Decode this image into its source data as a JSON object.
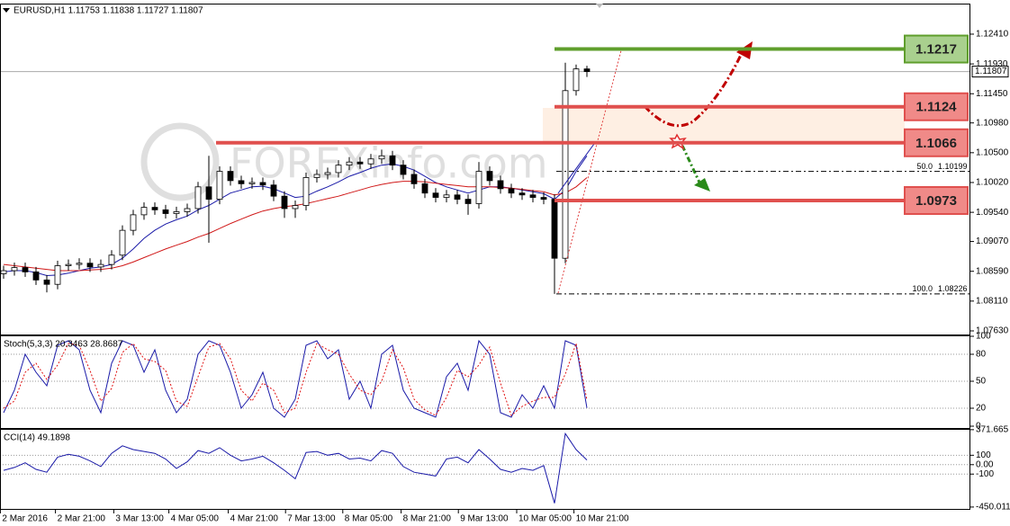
{
  "chart_data": [
    {
      "type": "candlestick",
      "title": "EURUSD,H1 1.11753 1.11838 1.11727 1.11807",
      "watermark": "FOREXinfo.com",
      "ylim": [
        1.07572,
        1.12902
      ],
      "yticks": [
        {
          "value": 1.1241,
          "label": "1.12410"
        },
        {
          "value": 1.1193,
          "label": "1.11930"
        },
        {
          "value": 1.1145,
          "label": "1.11450"
        },
        {
          "value": 1.1098,
          "label": "1.10980"
        },
        {
          "value": 1.105,
          "label": "1.10500"
        },
        {
          "value": 1.1002,
          "label": "1.10020"
        },
        {
          "value": 1.0954,
          "label": "1.09540"
        },
        {
          "value": 1.0907,
          "label": "1.09070"
        },
        {
          "value": 1.0859,
          "label": "1.08590"
        },
        {
          "value": 1.0811,
          "label": "1.08110"
        },
        {
          "value": 1.0763,
          "label": "1.07630"
        }
      ],
      "xlim": [
        -0.333,
        89.5
      ],
      "xticks": [
        {
          "value": -0.3,
          "label": "2 Mar 2016"
        },
        {
          "value": 4.8,
          "label": "2 Mar 21:00"
        },
        {
          "value": 10.2,
          "label": "3 Mar 13:00"
        },
        {
          "value": 15.3,
          "label": "4 Mar 05:00"
        },
        {
          "value": 20.8,
          "label": "4 Mar 21:00"
        },
        {
          "value": 26.1,
          "label": "7 Mar 13:00"
        },
        {
          "value": 31.4,
          "label": "8 Mar 05:00"
        },
        {
          "value": 36.8,
          "label": "8 Mar 21:00"
        },
        {
          "value": 42.1,
          "label": "9 Mar 13:00"
        },
        {
          "value": 47.5,
          "label": "10 Mar 05:00"
        },
        {
          "value": 52.8,
          "label": "10 Mar 21:00"
        }
      ],
      "open": [
        1.0855,
        1.086,
        1.0865,
        1.0858,
        1.0845,
        1.0838,
        1.0868,
        1.087,
        1.0872,
        1.0866,
        1.087,
        1.0885,
        1.0925,
        1.095,
        1.0962,
        1.0958,
        1.0952,
        1.0955,
        1.096,
        1.0995,
        1.0975,
        1.102,
        1.1005,
        1.1,
        1.1002,
        1.0998,
        1.098,
        1.096,
        1.0965,
        1.101,
        1.1015,
        1.1018,
        1.103,
        1.1035,
        1.1032,
        1.104,
        1.1045,
        1.103,
        1.1015,
        1.1,
        1.0985,
        1.0978,
        1.0982,
        1.0975,
        1.0968,
        1.102,
        1.1005,
        1.0992,
        1.0985,
        1.0982,
        1.0978,
        1.0975,
        1.088,
        1.115,
        1.1185
      ],
      "high": [
        1.0868,
        1.0873,
        1.0873,
        1.0866,
        1.0853,
        1.0876,
        1.0878,
        1.088,
        1.088,
        1.0878,
        1.0893,
        1.0933,
        1.0958,
        1.097,
        1.097,
        1.0966,
        1.0963,
        1.0968,
        1.1003,
        1.1045,
        1.1028,
        1.1028,
        1.1013,
        1.101,
        1.101,
        1.1006,
        1.0988,
        1.0973,
        1.1018,
        1.1023,
        1.1026,
        1.1038,
        1.1043,
        1.1043,
        1.1048,
        1.1055,
        1.1053,
        1.1038,
        1.1023,
        1.1008,
        1.0993,
        1.099,
        1.099,
        1.0983,
        1.1035,
        1.1028,
        1.1013,
        1.1,
        1.0993,
        1.099,
        1.0986,
        1.0983,
        1.1195,
        1.1192,
        1.119
      ],
      "low": [
        1.0847,
        1.0852,
        1.085,
        1.0837,
        1.0825,
        1.083,
        1.086,
        1.0862,
        1.0858,
        1.0858,
        1.0862,
        1.0877,
        1.0917,
        1.0942,
        1.095,
        1.0944,
        1.0944,
        1.0947,
        1.0952,
        1.0905,
        1.0967,
        1.0997,
        1.0992,
        1.0992,
        1.099,
        1.0972,
        1.0945,
        1.0945,
        1.0957,
        1.1002,
        1.1007,
        1.101,
        1.1022,
        1.1024,
        1.1024,
        1.1032,
        1.1022,
        1.1007,
        1.0992,
        1.0977,
        1.097,
        1.097,
        1.0967,
        1.095,
        1.096,
        1.0997,
        1.0984,
        1.0977,
        1.0974,
        1.097,
        1.0967,
        1.08226,
        1.0872,
        1.1142,
        1.1172
      ],
      "close": [
        1.086,
        1.0865,
        1.0858,
        1.0845,
        1.0838,
        1.0868,
        1.087,
        1.0872,
        1.0866,
        1.087,
        1.0885,
        1.0925,
        1.095,
        1.0962,
        1.0958,
        1.0952,
        1.0955,
        1.096,
        1.0995,
        1.0975,
        1.102,
        1.1005,
        1.1,
        1.1002,
        1.0998,
        1.098,
        1.096,
        1.0965,
        1.101,
        1.1015,
        1.1018,
        1.103,
        1.1035,
        1.1032,
        1.104,
        1.1045,
        1.103,
        1.1015,
        1.1,
        1.0985,
        1.0978,
        1.0982,
        1.0975,
        1.0968,
        1.102,
        1.1005,
        1.0992,
        1.0985,
        1.0982,
        1.0978,
        1.0975,
        1.088,
        1.115,
        1.1185,
        1.11807
      ],
      "series": [
        {
          "color": "#1a1aa8",
          "values": [
            1.0858,
            1.086,
            1.086,
            1.0857,
            1.0852,
            1.0853,
            1.0856,
            1.086,
            1.0864,
            1.0866,
            1.087,
            1.088,
            1.0895,
            1.0912,
            1.0925,
            1.0935,
            1.0942,
            1.0948,
            1.0958,
            1.0965,
            1.0975,
            1.0985,
            1.099,
            1.0995,
            1.0996,
            1.0992,
            1.0985,
            1.0978,
            1.098,
            1.0988,
            1.0995,
            1.1003,
            1.1012,
            1.1018,
            1.1025,
            1.103,
            1.1032,
            1.1028,
            1.1022,
            1.1012,
            1.1002,
            1.0995,
            1.099,
            1.0985,
            1.099,
            1.0995,
            1.0995,
            1.0993,
            1.099,
            1.0987,
            1.0984,
            1.0975,
            1.099,
            1.102,
            1.1045
          ]
        },
        {
          "color": "#d01818",
          "values": [
            1.087,
            1.0868,
            1.0866,
            1.0864,
            1.0862,
            1.086,
            1.086,
            1.086,
            1.0861,
            1.0862,
            1.0864,
            1.0868,
            1.0874,
            1.0881,
            1.0888,
            1.0895,
            1.0901,
            1.0907,
            1.0914,
            1.092,
            1.0928,
            1.0936,
            1.0943,
            1.095,
            1.0956,
            1.096,
            1.0963,
            1.0965,
            1.0968,
            1.0972,
            1.0976,
            1.098,
            1.0985,
            1.099,
            1.0995,
            1.0999,
            1.1002,
            1.1004,
            1.1004,
            1.1003,
            1.1001,
            1.0999,
            1.0997,
            1.0995,
            1.0995,
            1.0995,
            1.0994,
            1.0993,
            1.0991,
            1.0989,
            1.0987,
            1.0982,
            1.0985,
            1.0995,
            1.101
          ]
        }
      ],
      "current_price": 1.11807,
      "levels": [
        {
          "value": 1.1217,
          "color": "#5f9e2c",
          "box": "#a9d08e"
        },
        {
          "value": 1.1124,
          "color": "#e0504e",
          "box": "#f08a88"
        },
        {
          "value": 1.1066,
          "color": "#e0504e",
          "box": "#f08a88"
        },
        {
          "value": 1.0973,
          "color": "#e0504e",
          "box": "#f08a88"
        }
      ],
      "fib": [
        {
          "level": "50.0",
          "price": 1.10199
        },
        {
          "level": "100.0",
          "price": 1.08226
        }
      ]
    },
    {
      "type": "line",
      "title": "Stoch(5,3,3) 20.3463 28.8687",
      "ylim": [
        0,
        100
      ],
      "yticks": [
        100,
        80,
        50,
        20,
        0
      ],
      "series": [
        {
          "color": "#1a1aa8",
          "values": [
            15,
            40,
            80,
            60,
            45,
            90,
            95,
            85,
            40,
            15,
            70,
            95,
            90,
            60,
            85,
            40,
            15,
            30,
            80,
            95,
            90,
            60,
            20,
            35,
            60,
            20,
            10,
            30,
            90,
            95,
            75,
            85,
            30,
            50,
            20,
            80,
            90,
            40,
            20,
            15,
            10,
            55,
            70,
            40,
            95,
            80,
            15,
            10,
            35,
            20,
            45,
            20,
            95,
            90,
            20.3463
          ]
        },
        {
          "color": "#e01010",
          "dashed": true,
          "values": [
            20,
            28,
            60,
            70,
            52,
            68,
            92,
            90,
            62,
            28,
            42,
            82,
            92,
            75,
            72,
            62,
            28,
            22,
            55,
            88,
            92,
            75,
            40,
            28,
            48,
            40,
            15,
            20,
            60,
            92,
            85,
            80,
            58,
            40,
            35,
            50,
            85,
            65,
            30,
            18,
            12,
            32,
            62,
            55,
            68,
            88,
            48,
            12,
            22,
            28,
            32,
            32,
            58,
            92,
            28.8687
          ]
        }
      ]
    },
    {
      "type": "line",
      "title": "CCI(14) 49.1898",
      "ylim": [
        -470,
        380
      ],
      "yticks": [
        371.665,
        100,
        {
          "value": 0,
          "label": "0.00"
        },
        -100,
        -450.0119
      ],
      "series": [
        {
          "color": "#1a1aa8",
          "values": [
            -60,
            -30,
            20,
            -50,
            -80,
            80,
            110,
            90,
            40,
            -20,
            120,
            200,
            160,
            140,
            120,
            60,
            -40,
            30,
            150,
            120,
            180,
            100,
            40,
            60,
            90,
            20,
            -60,
            -150,
            130,
            140,
            100,
            120,
            60,
            70,
            40,
            150,
            120,
            -20,
            -80,
            -100,
            -120,
            60,
            80,
            20,
            160,
            60,
            -50,
            -80,
            -40,
            -60,
            -10,
            -410,
            330,
            160,
            49.1898
          ]
        }
      ]
    }
  ]
}
